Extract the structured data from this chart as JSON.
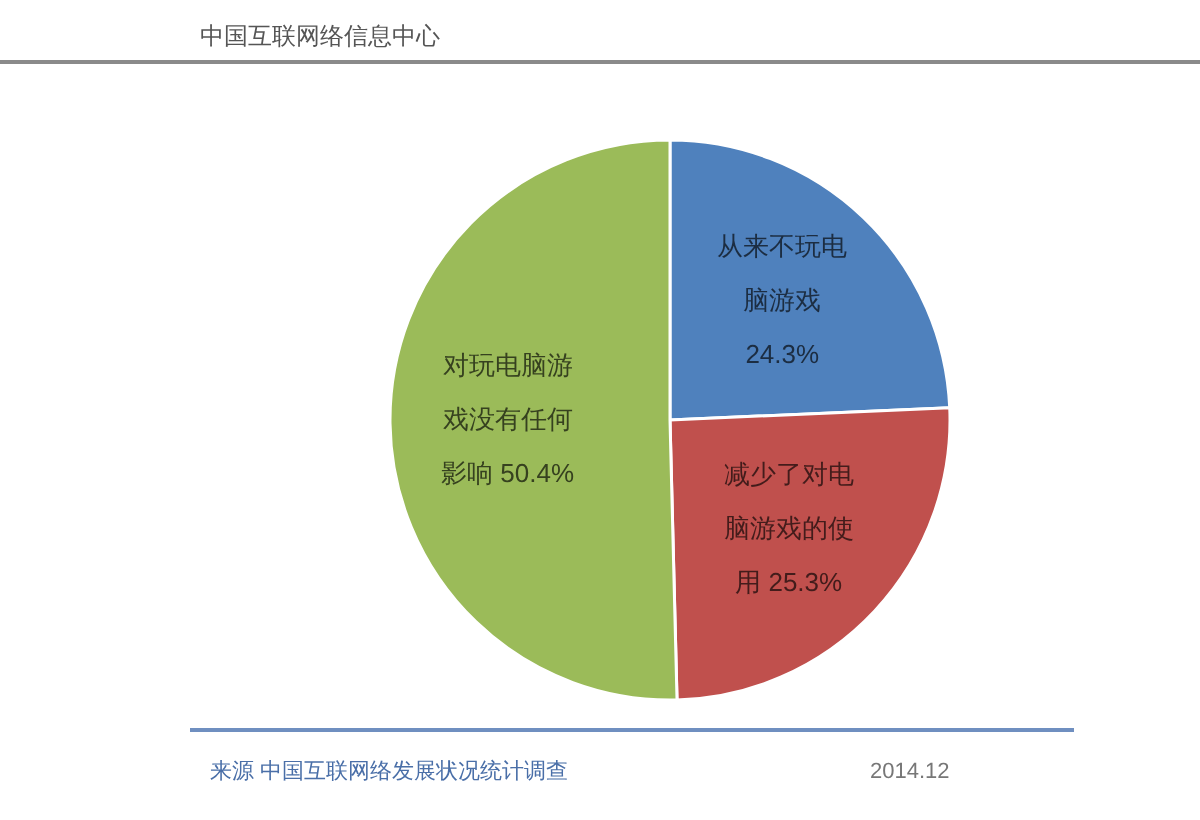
{
  "chart_data": {
    "type": "pie",
    "title": "中国互联网络信息中心",
    "categories": [
      "从来不玩电脑游戏",
      "减少了对电脑游戏的使用",
      "对玩电脑游戏没有任何影响"
    ],
    "values": [
      24.3,
      25.3,
      50.4
    ],
    "colors": [
      "#4f81bd",
      "#c0504d",
      "#9bbb59"
    ],
    "value_labels": [
      "24.3%",
      "25.3%",
      "50.4%"
    ],
    "annotations": [
      "来源 中国互联网络发展状况统计调查",
      "2014.12"
    ]
  }
}
